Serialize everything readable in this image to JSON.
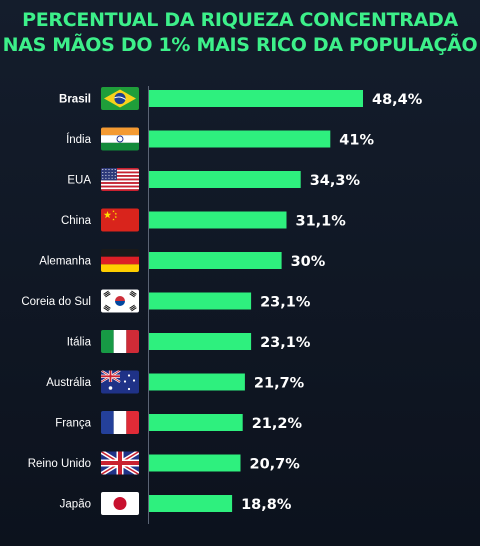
{
  "chart_data": {
    "type": "bar",
    "title_lines": [
      "PERCENTUAL DA RIQUEZA CONCENTRADA",
      "NAS MÃOS DO 1% MAIS RICO DA POPULAÇÃO"
    ],
    "orientation": "horizontal",
    "categories": [
      "Brasil",
      "Índia",
      "EUA",
      "China",
      "Alemanha",
      "Coreia do Sul",
      "Itália",
      "Austrália",
      "França",
      "Reino Unido",
      "Japão"
    ],
    "values": [
      48.4,
      41,
      34.3,
      31.1,
      30,
      23.1,
      23.1,
      21.7,
      21.2,
      20.7,
      18.8
    ],
    "value_labels": [
      "48,4%",
      "41%",
      "34,3%",
      "31,1%",
      "30%",
      "23,1%",
      "23,1%",
      "21,7%",
      "21,2%",
      "20,7%",
      "18,8%"
    ],
    "flags": [
      "brazil-flag-icon",
      "india-flag-icon",
      "usa-flag-icon",
      "china-flag-icon",
      "germany-flag-icon",
      "south-korea-flag-icon",
      "italy-flag-icon",
      "australia-flag-icon",
      "france-flag-icon",
      "uk-flag-icon",
      "japan-flag-icon"
    ],
    "highlight_category": "Brasil",
    "bar_color": "#2ef07e",
    "title_color": "#3df08a",
    "xlim": [
      0,
      48.4
    ],
    "grid": false,
    "legend": "none"
  }
}
